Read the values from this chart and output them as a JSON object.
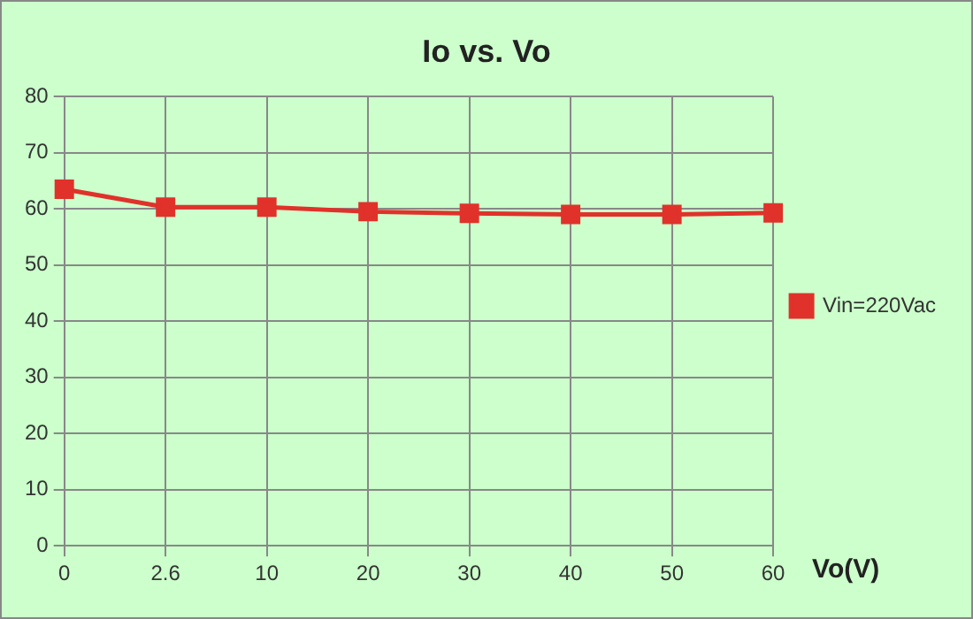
{
  "chart_data": {
    "type": "line",
    "title": "Io vs. Vo",
    "xlabel": "Vo(V)",
    "categories": [
      "0",
      "2.6",
      "10",
      "20",
      "30",
      "40",
      "50",
      "60"
    ],
    "series": [
      {
        "name": "Vin=220Vac",
        "color": "#e0322a",
        "values": [
          63.5,
          60.3,
          60.3,
          59.5,
          59.2,
          59,
          59,
          59.3
        ]
      }
    ],
    "ylim": [
      0,
      80
    ],
    "yticks": [
      0,
      10,
      20,
      30,
      40,
      50,
      60,
      70,
      80
    ],
    "grid": true,
    "legend": "right",
    "marker": "square",
    "line_style": "solid"
  }
}
